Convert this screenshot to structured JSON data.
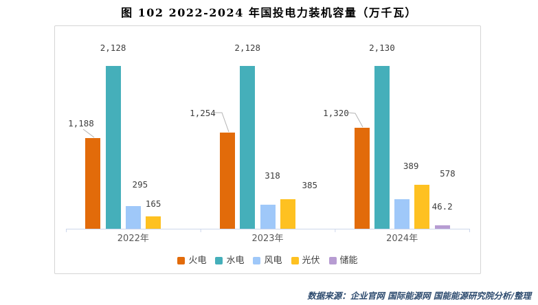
{
  "page": {
    "title": "图 102 2022-2024 年国投电力装机容量（万千瓦）"
  },
  "footer": {
    "source": "数据来源：企业官网 国际能源网 国能能源研究院分析/整理"
  },
  "chart_data": {
    "type": "bar",
    "title": "图 102 2022-2024 年国投电力装机容量（万千瓦）",
    "unit": "万千瓦",
    "categories": [
      "2022年",
      "2023年",
      "2024年"
    ],
    "series": [
      {
        "name": "火电",
        "color": "#E26B0A",
        "values": [
          1188,
          1254,
          1320
        ],
        "value_labels": [
          "1,188",
          "1,254",
          "1,320"
        ]
      },
      {
        "name": "水电",
        "color": "#45AFBA",
        "values": [
          2128,
          2128,
          2130
        ],
        "value_labels": [
          "2,128",
          "2,128",
          "2,130"
        ]
      },
      {
        "name": "风电",
        "color": "#9FC8F9",
        "values": [
          295,
          318,
          389
        ],
        "value_labels": [
          "295",
          "318",
          "389"
        ]
      },
      {
        "name": "光伏",
        "color": "#FEC121",
        "values": [
          165,
          385,
          578
        ],
        "value_labels": [
          "165",
          "385",
          "578"
        ]
      },
      {
        "name": "储能",
        "color": "#B79CD2",
        "values": [
          null,
          null,
          46.2
        ],
        "value_labels": [
          null,
          null,
          "46.2"
        ]
      }
    ],
    "xlabel": "",
    "ylabel": "",
    "ylim": [
      0,
      2350
    ],
    "grid": false,
    "y_axis_visible": false,
    "legend_position": "bottom",
    "axis_color": "#CCD6EB",
    "leader_line_color": "#B3B3B3"
  }
}
